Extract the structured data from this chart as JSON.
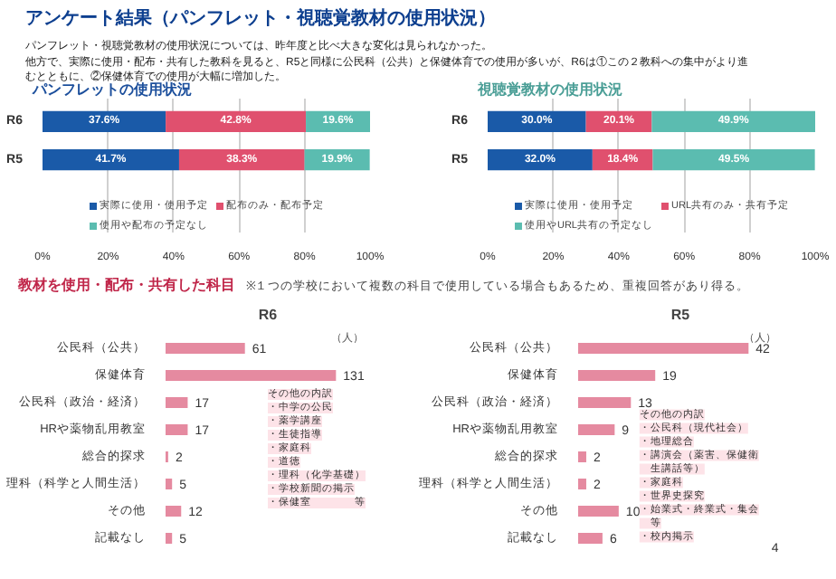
{
  "chart_data": [
    {
      "type": "bar",
      "orientation": "horizontal",
      "stacked": true,
      "title": "パンフレットの使用状況",
      "annotations": [
        "アンケート結果（パンフレット・視聴覚教材の使用状況）",
        "パンフレット・視聴覚教材の使用状況については、昨年度と比べ大きな変化は見られなかった。",
        "他方で、実際に使用・配布・共有した教科を見ると、R5と同様に公民科（公共）と保健体育での使用が多いが、R6は①この２教科への集中がより進むとともに、②保健体育での使用が大幅に増加した。"
      ],
      "categories": [
        "R6",
        "R5"
      ],
      "series": [
        {
          "name": "実際に使用・使用予定",
          "color": "#1a5aa8",
          "values": [
            37.6,
            41.7
          ],
          "value_labels": [
            "37.6%",
            "41.7%"
          ]
        },
        {
          "name": "配布のみ・配布予定",
          "color": "#e0506e",
          "values": [
            42.8,
            38.3
          ],
          "value_labels": [
            "42.8%",
            "38.3%"
          ]
        },
        {
          "name": "使用や配布の予定なし",
          "color": "#5bbcb0",
          "values": [
            19.6,
            19.9
          ],
          "value_labels": [
            "19.6%",
            "19.9%"
          ]
        }
      ],
      "xlim": [
        0,
        100
      ],
      "xticks": [
        {
          "value": 0,
          "label": "0%"
        },
        {
          "value": 20,
          "label": "20%"
        },
        {
          "value": 40,
          "label": "40%"
        },
        {
          "value": 60,
          "label": "60%"
        },
        {
          "value": 80,
          "label": "80%"
        },
        {
          "value": 100,
          "label": "100%"
        }
      ],
      "grid": "x",
      "legend": "bottom"
    },
    {
      "type": "bar",
      "orientation": "horizontal",
      "stacked": true,
      "title": "視聴覚教材の使用状況",
      "categories": [
        "R6",
        "R5"
      ],
      "series": [
        {
          "name": "実際に使用・使用予定",
          "color": "#1a5aa8",
          "values": [
            30.0,
            32.0
          ],
          "value_labels": [
            "30.0%",
            "32.0%"
          ]
        },
        {
          "name": "URL共有のみ・共有予定",
          "color": "#e0506e",
          "values": [
            20.1,
            18.4
          ],
          "value_labels": [
            "20.1%",
            "18.4%"
          ]
        },
        {
          "name": "使用やURL共有の予定なし",
          "color": "#5bbcb0",
          "values": [
            49.9,
            49.5
          ],
          "value_labels": [
            "49.9%",
            "49.5%"
          ]
        }
      ],
      "xlim": [
        0,
        100
      ],
      "xticks": [
        {
          "value": 0,
          "label": "0%"
        },
        {
          "value": 20,
          "label": "20%"
        },
        {
          "value": 40,
          "label": "40%"
        },
        {
          "value": 60,
          "label": "60%"
        },
        {
          "value": 80,
          "label": "80%"
        },
        {
          "value": 100,
          "label": "100%"
        }
      ],
      "grid": "x",
      "legend": "bottom"
    },
    {
      "type": "bar",
      "orientation": "horizontal",
      "title": "R6",
      "xlabel": "（人）",
      "annotations": [
        "教材を使用・配布・共有した科目",
        "※１つの学校において複数の科目で使用している場合もあるため、重複回答があり得る。",
        "その他の内訳",
        "・中学の公民",
        "・薬学講座",
        "・生徒指導",
        "・家庭科",
        "・道徳",
        "・理科（化学基礎）",
        "・学校新聞の掲示",
        "・保健室　　　　等"
      ],
      "categories": [
        "公民科（公共）",
        "保健体育",
        "公民科（政治・経済）",
        "HRや薬物乱用教室",
        "総合的探求",
        "理科（科学と人間生活）",
        "その他",
        "記載なし"
      ],
      "values": [
        61,
        131,
        17,
        17,
        2,
        5,
        12,
        5
      ],
      "color": "#e58aa0",
      "data_labels": true,
      "tick_labels": "y"
    },
    {
      "type": "bar",
      "orientation": "horizontal",
      "title": "R5",
      "xlabel": "（人）",
      "annotations": [
        "4",
        "その他の内訳",
        "・公民科（現代社会）",
        "・地理総合",
        "・講演会（薬害、保健衛生講話等）",
        "・家庭科",
        "・世界史探究",
        "・始業式・終業式・集会等",
        "・校内掲示"
      ],
      "categories": [
        "公民科（公共）",
        "保健体育",
        "公民科（政治・経済）",
        "HRや薬物乱用教室",
        "総合的探求",
        "理科（科学と人間生活）",
        "その他",
        "記載なし"
      ],
      "values": [
        42,
        19,
        13,
        9,
        2,
        2,
        10,
        6
      ],
      "color": "#e58aa0",
      "data_labels": true,
      "tick_labels": "y"
    }
  ]
}
